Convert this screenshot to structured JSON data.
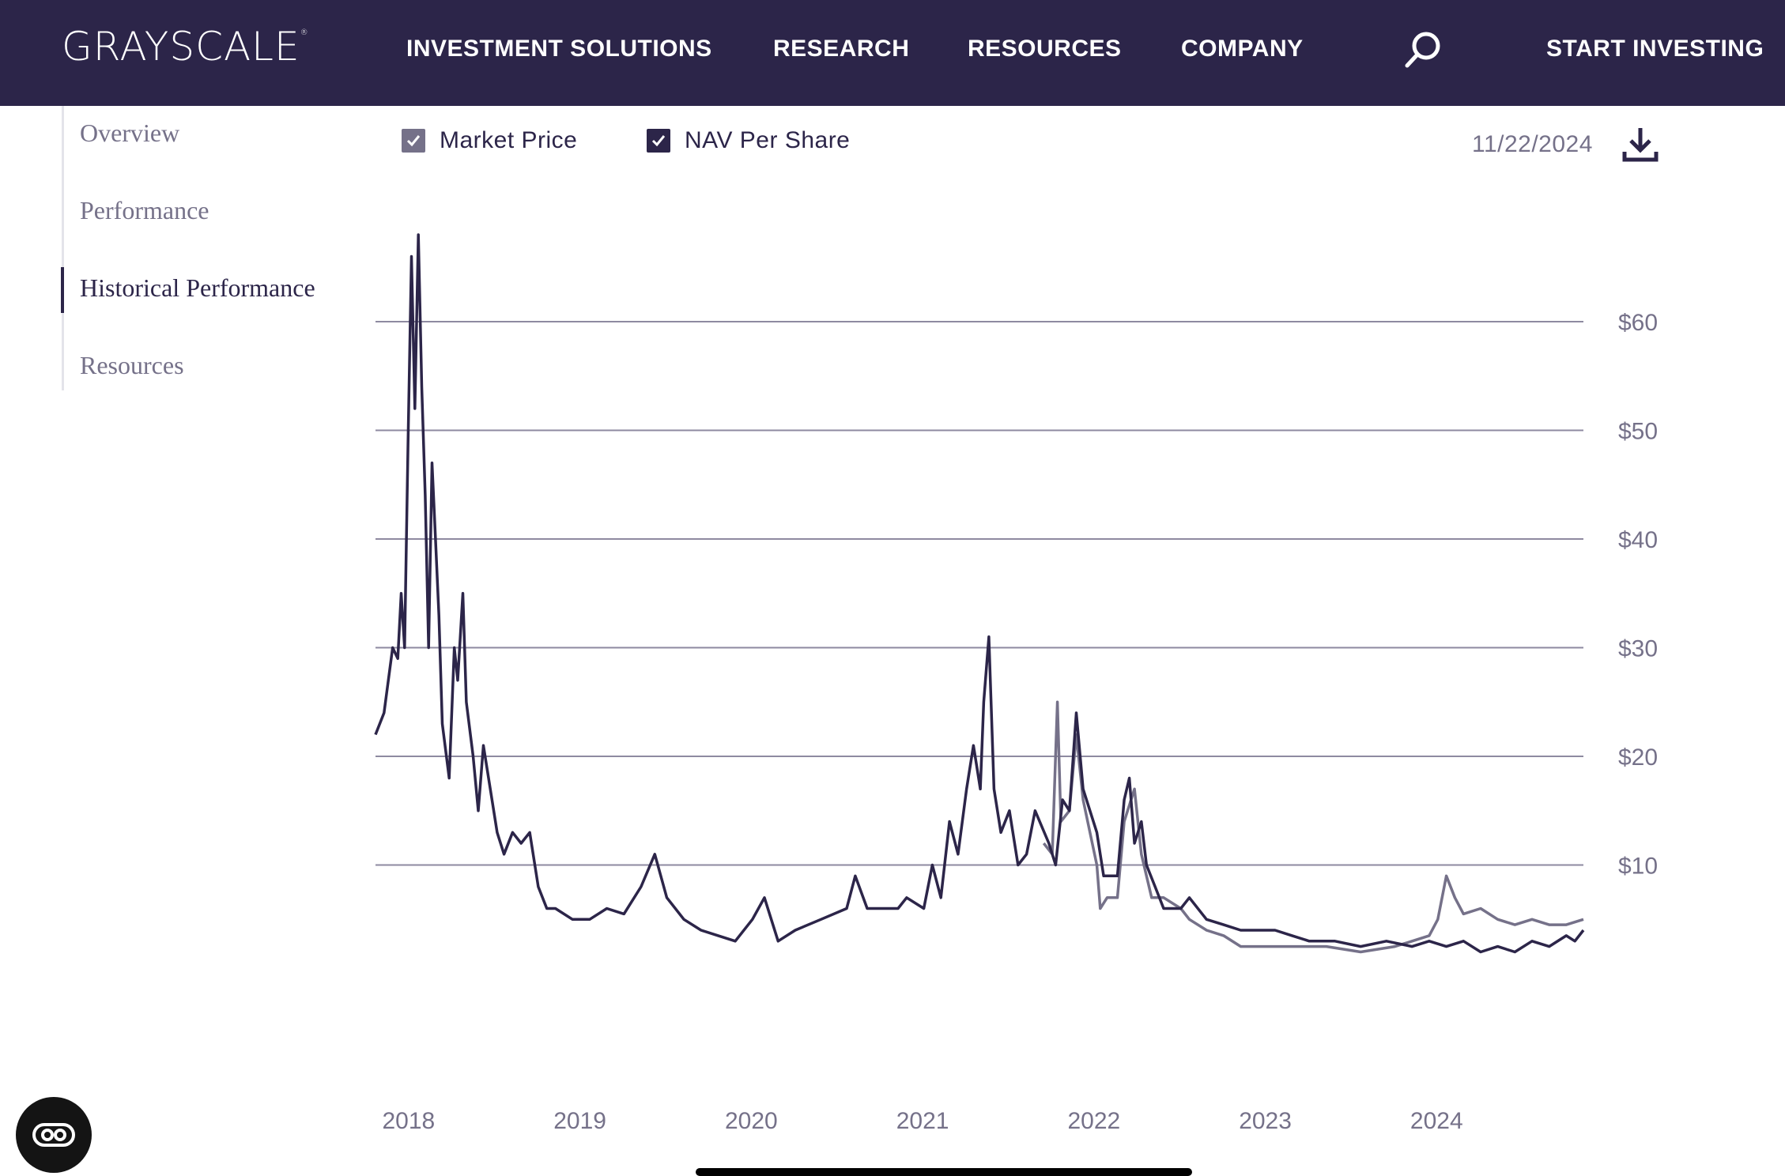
{
  "header": {
    "logo_text": "GRAYSCALE",
    "logo_mark": "®",
    "nav": [
      "INVESTMENT SOLUTIONS",
      "RESEARCH",
      "RESOURCES",
      "COMPANY"
    ],
    "search_icon": "search-icon",
    "cta": "START INVESTING",
    "background": "#2c2549"
  },
  "sidebar": {
    "items": [
      {
        "label": "Overview",
        "active": false
      },
      {
        "label": "Performance",
        "active": false
      },
      {
        "label": "Historical Performance",
        "active": true
      },
      {
        "label": "Resources",
        "active": false
      }
    ]
  },
  "legend": {
    "market_price": {
      "label": "Market Price",
      "checked": true,
      "color": "#757189"
    },
    "nav_per_share": {
      "label": "NAV Per Share",
      "checked": true,
      "color": "#2c2549"
    }
  },
  "as_of_date": "11/22/2024",
  "download_icon": "download-icon",
  "chart_data": {
    "type": "line",
    "ylim": [
      0,
      70
    ],
    "yticks": [
      10,
      20,
      30,
      40,
      50,
      60
    ],
    "ytick_labels": [
      "$10",
      "$20",
      "$30",
      "$40",
      "$50",
      "$60"
    ],
    "xticks": [
      2018,
      2019,
      2020,
      2021,
      2022,
      2023,
      2024
    ],
    "xtick_labels": [
      "2018",
      "2019",
      "2020",
      "2021",
      "2022",
      "2023",
      "2024"
    ],
    "xlim": [
      2017.85,
      2024.9
    ],
    "grid": true,
    "series": [
      {
        "name": "NAV Per Share",
        "color": "#2c2549",
        "points": [
          [
            2017.85,
            22
          ],
          [
            2017.9,
            24
          ],
          [
            2017.95,
            30
          ],
          [
            2017.98,
            29
          ],
          [
            2018.0,
            35
          ],
          [
            2018.02,
            30
          ],
          [
            2018.04,
            49
          ],
          [
            2018.06,
            66
          ],
          [
            2018.08,
            52
          ],
          [
            2018.1,
            68
          ],
          [
            2018.12,
            54
          ],
          [
            2018.14,
            44
          ],
          [
            2018.16,
            30
          ],
          [
            2018.18,
            47
          ],
          [
            2018.2,
            40
          ],
          [
            2018.22,
            33
          ],
          [
            2018.24,
            23
          ],
          [
            2018.28,
            18
          ],
          [
            2018.31,
            30
          ],
          [
            2018.33,
            27
          ],
          [
            2018.36,
            35
          ],
          [
            2018.38,
            25
          ],
          [
            2018.42,
            20
          ],
          [
            2018.45,
            15
          ],
          [
            2018.48,
            21
          ],
          [
            2018.52,
            17
          ],
          [
            2018.56,
            13
          ],
          [
            2018.6,
            11
          ],
          [
            2018.65,
            13
          ],
          [
            2018.7,
            12
          ],
          [
            2018.75,
            13
          ],
          [
            2018.8,
            8
          ],
          [
            2018.85,
            6
          ],
          [
            2018.9,
            6
          ],
          [
            2019.0,
            5
          ],
          [
            2019.1,
            5
          ],
          [
            2019.2,
            6
          ],
          [
            2019.3,
            5.5
          ],
          [
            2019.4,
            8
          ],
          [
            2019.48,
            11
          ],
          [
            2019.55,
            7
          ],
          [
            2019.65,
            5
          ],
          [
            2019.75,
            4
          ],
          [
            2019.85,
            3.5
          ],
          [
            2019.95,
            3
          ],
          [
            2020.05,
            5
          ],
          [
            2020.12,
            7
          ],
          [
            2020.2,
            3
          ],
          [
            2020.3,
            4
          ],
          [
            2020.45,
            5
          ],
          [
            2020.6,
            6
          ],
          [
            2020.65,
            9
          ],
          [
            2020.72,
            6
          ],
          [
            2020.8,
            6
          ],
          [
            2020.9,
            6
          ],
          [
            2020.95,
            7
          ],
          [
            2021.05,
            6
          ],
          [
            2021.1,
            10
          ],
          [
            2021.15,
            7
          ],
          [
            2021.2,
            14
          ],
          [
            2021.25,
            11
          ],
          [
            2021.3,
            17
          ],
          [
            2021.34,
            21
          ],
          [
            2021.38,
            17
          ],
          [
            2021.4,
            25
          ],
          [
            2021.43,
            31
          ],
          [
            2021.46,
            17
          ],
          [
            2021.5,
            13
          ],
          [
            2021.55,
            15
          ],
          [
            2021.6,
            10
          ],
          [
            2021.65,
            11
          ],
          [
            2021.7,
            15
          ],
          [
            2021.78,
            12
          ],
          [
            2021.82,
            10
          ],
          [
            2021.86,
            16
          ],
          [
            2021.9,
            15
          ],
          [
            2021.94,
            24
          ],
          [
            2021.98,
            17
          ],
          [
            2022.02,
            15
          ],
          [
            2022.06,
            13
          ],
          [
            2022.1,
            9
          ],
          [
            2022.18,
            9
          ],
          [
            2022.22,
            16
          ],
          [
            2022.25,
            18
          ],
          [
            2022.28,
            12
          ],
          [
            2022.32,
            14
          ],
          [
            2022.35,
            10
          ],
          [
            2022.4,
            8
          ],
          [
            2022.45,
            6
          ],
          [
            2022.55,
            6
          ],
          [
            2022.6,
            7
          ],
          [
            2022.7,
            5
          ],
          [
            2022.8,
            4.5
          ],
          [
            2022.9,
            4
          ],
          [
            2023.0,
            4
          ],
          [
            2023.1,
            4
          ],
          [
            2023.2,
            3.5
          ],
          [
            2023.3,
            3
          ],
          [
            2023.45,
            3
          ],
          [
            2023.6,
            2.5
          ],
          [
            2023.75,
            3
          ],
          [
            2023.9,
            2.5
          ],
          [
            2024.0,
            3
          ],
          [
            2024.1,
            2.5
          ],
          [
            2024.2,
            3
          ],
          [
            2024.3,
            2
          ],
          [
            2024.4,
            2.5
          ],
          [
            2024.5,
            2
          ],
          [
            2024.6,
            3
          ],
          [
            2024.7,
            2.5
          ],
          [
            2024.8,
            3.5
          ],
          [
            2024.85,
            3
          ],
          [
            2024.9,
            4
          ]
        ]
      },
      {
        "name": "Market Price",
        "color": "#757189",
        "points": [
          [
            2021.75,
            12
          ],
          [
            2021.8,
            11
          ],
          [
            2021.83,
            25
          ],
          [
            2021.85,
            14
          ],
          [
            2021.9,
            15
          ],
          [
            2021.94,
            22
          ],
          [
            2021.98,
            16
          ],
          [
            2022.02,
            13
          ],
          [
            2022.06,
            10
          ],
          [
            2022.08,
            6
          ],
          [
            2022.12,
            7
          ],
          [
            2022.18,
            7
          ],
          [
            2022.22,
            14
          ],
          [
            2022.28,
            17
          ],
          [
            2022.32,
            11
          ],
          [
            2022.38,
            7
          ],
          [
            2022.45,
            7
          ],
          [
            2022.55,
            6
          ],
          [
            2022.6,
            5
          ],
          [
            2022.7,
            4
          ],
          [
            2022.8,
            3.5
          ],
          [
            2022.9,
            2.5
          ],
          [
            2023.0,
            2.5
          ],
          [
            2023.2,
            2.5
          ],
          [
            2023.4,
            2.5
          ],
          [
            2023.6,
            2
          ],
          [
            2023.8,
            2.5
          ],
          [
            2023.9,
            3
          ],
          [
            2024.0,
            3.5
          ],
          [
            2024.05,
            5
          ],
          [
            2024.1,
            9
          ],
          [
            2024.15,
            7
          ],
          [
            2024.2,
            5.5
          ],
          [
            2024.3,
            6
          ],
          [
            2024.4,
            5
          ],
          [
            2024.5,
            4.5
          ],
          [
            2024.6,
            5
          ],
          [
            2024.7,
            4.5
          ],
          [
            2024.8,
            4.5
          ],
          [
            2024.9,
            5
          ]
        ]
      }
    ]
  }
}
